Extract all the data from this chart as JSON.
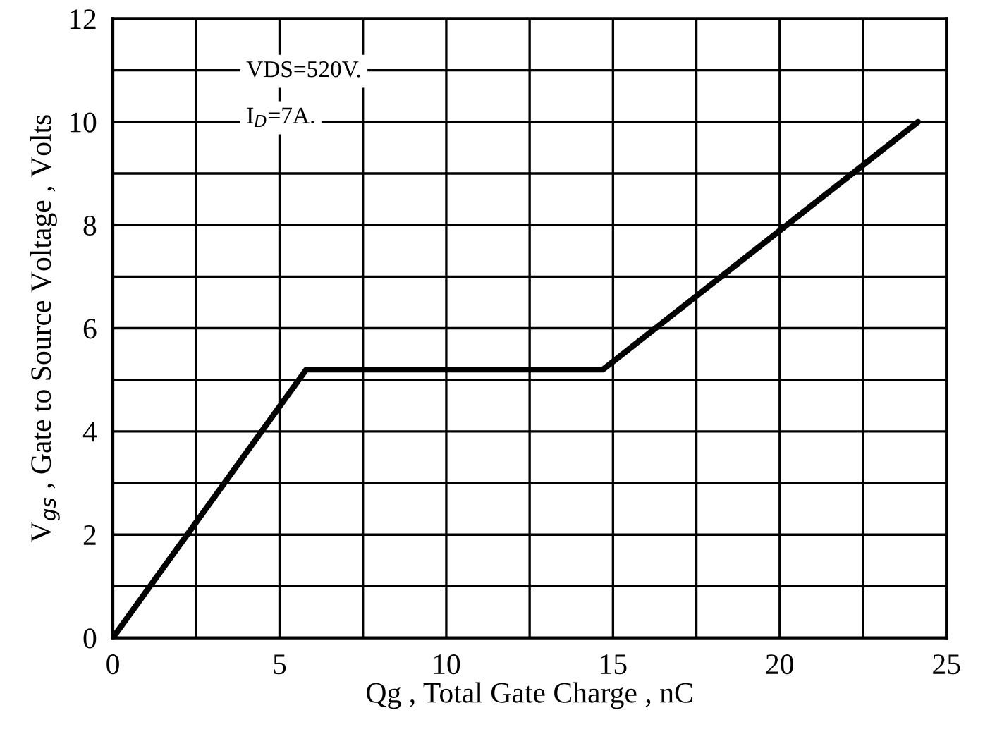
{
  "chart_data": {
    "type": "line",
    "xlabel": "Qg , Total Gate Charge , nC",
    "ylabel": "V$_{gs}$ , Gate to Source Voltage , Volts",
    "x": [
      0,
      5.8,
      14.7,
      24.15
    ],
    "series": [
      {
        "color": "#000000",
        "values": [
          0,
          5.2,
          5.2,
          10
        ]
      }
    ],
    "xlim": [
      0,
      25
    ],
    "ylim": [
      0,
      12
    ],
    "xticks": [
      0,
      {
        "value": 2.5,
        "label": null
      },
      5,
      {
        "value": 7.5,
        "label": null
      },
      10,
      {
        "value": 12.5,
        "label": null
      },
      15,
      {
        "value": 17.5,
        "label": null
      },
      20,
      {
        "value": 22.5,
        "label": null
      },
      25
    ],
    "yticks": [
      0,
      {
        "value": 1,
        "label": null
      },
      2,
      {
        "value": 3,
        "label": null
      },
      4,
      {
        "value": 5,
        "label": null
      },
      6,
      {
        "value": 7,
        "label": null
      },
      8,
      {
        "value": 9,
        "label": null
      },
      10,
      {
        "value": 11,
        "label": null
      },
      12
    ],
    "grid": true,
    "marker": "none",
    "line_style": "solid",
    "legend": false,
    "annotations": [
      "VDS=520V.",
      "I$_{D}$=7A."
    ]
  }
}
